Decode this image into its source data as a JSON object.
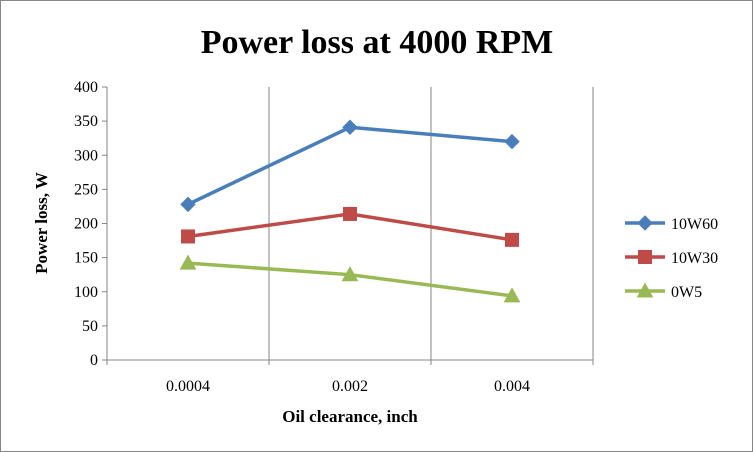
{
  "chart_data": {
    "type": "line",
    "title": "Power loss at 4000 RPM",
    "xlabel": "Oil clearance, inch",
    "ylabel": "Power loss, W",
    "categories": [
      "0.0004",
      "0.002",
      "0.004"
    ],
    "ylim": [
      0,
      400
    ],
    "yticks": [
      0,
      50,
      100,
      150,
      200,
      250,
      300,
      350,
      400
    ],
    "grid": "vertical",
    "legend_position": "right",
    "series": [
      {
        "name": "10W60",
        "values": [
          228,
          341,
          320
        ],
        "color": "#4a7ebb",
        "marker": "diamond"
      },
      {
        "name": "10W30",
        "values": [
          181,
          214,
          176
        ],
        "color": "#be4b48",
        "marker": "square"
      },
      {
        "name": "0W5",
        "values": [
          142,
          125,
          94
        ],
        "color": "#98b954",
        "marker": "triangle"
      }
    ]
  }
}
